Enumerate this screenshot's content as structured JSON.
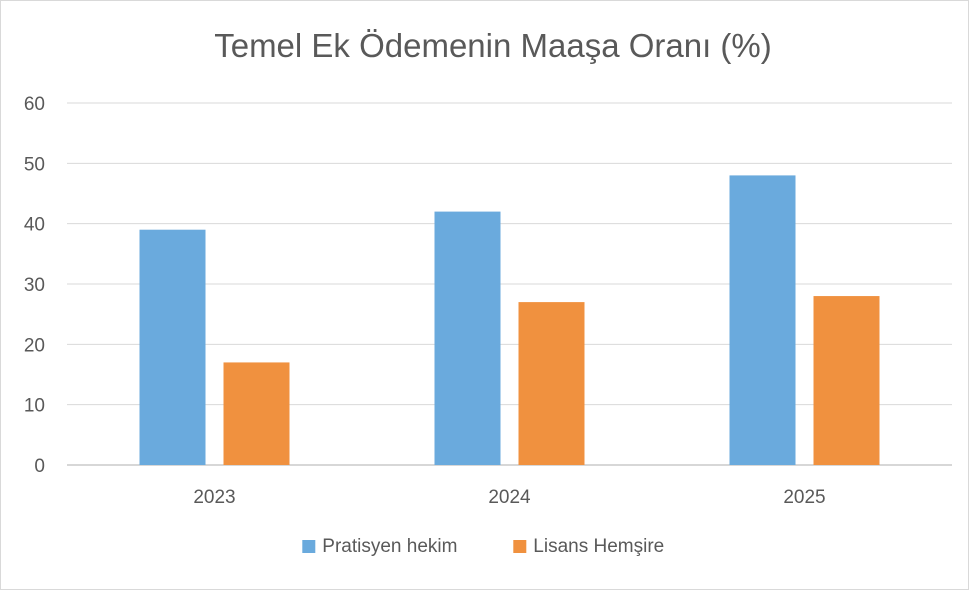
{
  "chart_data": {
    "type": "bar",
    "title": "Temel Ek Ödemenin Maaşa Oranı (%)",
    "categories": [
      "2023",
      "2024",
      "2025"
    ],
    "series": [
      {
        "name": "Pratisyen hekim",
        "values": [
          39,
          42,
          48
        ],
        "color": "#6aaadd"
      },
      {
        "name": "Lisans Hemşire",
        "values": [
          17,
          27,
          28
        ],
        "color": "#f0913f"
      }
    ],
    "ylim": [
      0,
      60
    ],
    "yticks": [
      "0",
      "10",
      "20",
      "30",
      "40",
      "50",
      "60"
    ],
    "grid": true,
    "legend_position": "bottom"
  }
}
